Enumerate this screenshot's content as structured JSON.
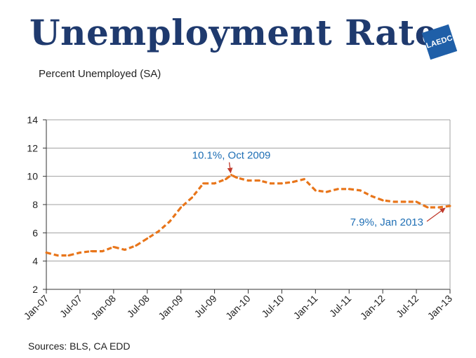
{
  "header": {
    "title": "Unemployment Rate",
    "subtitle": "Percent Unemployed (SA)",
    "logo_text": "LAEDC",
    "logo_color": "#1f5fa8",
    "title_color": "#1f3a6e"
  },
  "footer": {
    "sources": "Sources:  BLS, CA EDD"
  },
  "colors": {
    "line": "#e8751a",
    "annotation_text": "#1f6fb5",
    "arrow": "#c0392b",
    "grid": "#a0a0a0"
  },
  "chart_data": {
    "type": "line",
    "title": "Unemployment Rate",
    "subtitle": "Percent Unemployed (SA)",
    "xlabel": "",
    "ylabel": "",
    "ylim": [
      2,
      14
    ],
    "yticks": [
      2,
      4,
      6,
      8,
      10,
      12,
      14
    ],
    "xlim": [
      "Jan-07",
      "Jan-13"
    ],
    "xticks": [
      "Jan-07",
      "Jul-07",
      "Jan-08",
      "Jul-08",
      "Jan-09",
      "Jul-09",
      "Jan-10",
      "Jul-10",
      "Jan-11",
      "Jul-11",
      "Jan-12",
      "Jul-12",
      "Jan-13"
    ],
    "grid": "horizontal",
    "line_style": "dashed",
    "series": [
      {
        "x": [
          "Jan-07",
          "Mar-07",
          "May-07",
          "Jul-07",
          "Sep-07",
          "Nov-07",
          "Jan-08",
          "Mar-08",
          "May-08",
          "Jul-08",
          "Sep-08",
          "Nov-08",
          "Jan-09",
          "Mar-09",
          "May-09",
          "Jul-09",
          "Sep-09",
          "Oct-09",
          "Nov-09",
          "Jan-10",
          "Mar-10",
          "May-10",
          "Jul-10",
          "Sep-10",
          "Nov-10",
          "Jan-11",
          "Mar-11",
          "May-11",
          "Jul-11",
          "Sep-11",
          "Nov-11",
          "Jan-12",
          "Mar-12",
          "May-12",
          "Jul-12",
          "Sep-12",
          "Nov-12",
          "Jan-13"
        ],
        "values": [
          4.6,
          4.4,
          4.4,
          4.6,
          4.7,
          4.7,
          5.0,
          4.8,
          5.1,
          5.6,
          6.1,
          6.8,
          7.8,
          8.5,
          9.5,
          9.5,
          9.8,
          10.1,
          9.9,
          9.7,
          9.7,
          9.5,
          9.5,
          9.6,
          9.8,
          9.0,
          8.9,
          9.1,
          9.1,
          9.0,
          8.6,
          8.3,
          8.2,
          8.2,
          8.2,
          7.8,
          7.8,
          7.9
        ]
      }
    ],
    "annotations": [
      {
        "text": "10.1%, Oct 2009",
        "x": "Oct-09",
        "y": 10.1
      },
      {
        "text": "7.9%, Jan 2013",
        "x": "Jan-13",
        "y": 7.9
      }
    ]
  }
}
